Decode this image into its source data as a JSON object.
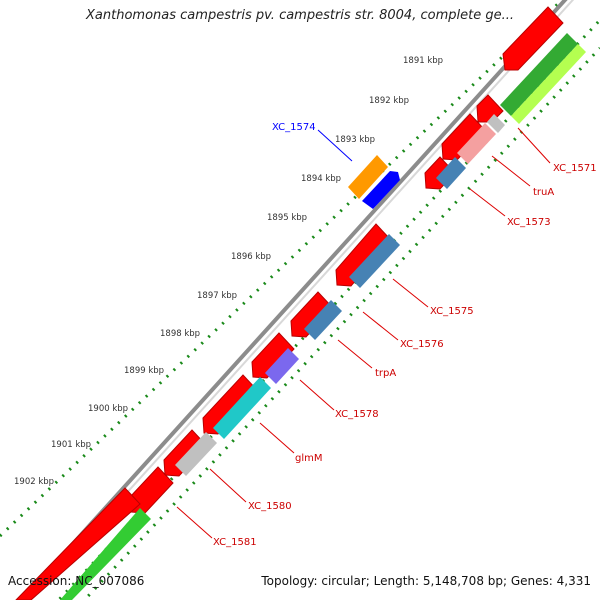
{
  "header": {
    "title": "Xanthomonas campestris pv. campestris str. 8004, complete ge..."
  },
  "footer": {
    "accession": "Accession: NC_007086",
    "summary": "Topology: circular; Length: 5,148,708 bp; Genes: 4,331"
  },
  "ruler": {
    "ticks": [
      "1891 kbp",
      "1892 kbp",
      "1893 kbp",
      "1894 kbp",
      "1895 kbp",
      "1896 kbp",
      "1897 kbp",
      "1898 kbp",
      "1899 kbp",
      "1900 kbp",
      "1901 kbp",
      "1902 kbp"
    ]
  },
  "gene_labels": [
    {
      "name": "XC_1574",
      "color": "#0000ff",
      "side": "outer"
    },
    {
      "name": "XC_1571",
      "color": "#cc0000",
      "side": "inner"
    },
    {
      "name": "truA",
      "color": "#cc0000",
      "side": "inner"
    },
    {
      "name": "XC_1573",
      "color": "#cc0000",
      "side": "inner"
    },
    {
      "name": "XC_1575",
      "color": "#cc0000",
      "side": "inner"
    },
    {
      "name": "XC_1576",
      "color": "#cc0000",
      "side": "inner"
    },
    {
      "name": "trpA",
      "color": "#cc0000",
      "side": "inner"
    },
    {
      "name": "XC_1578",
      "color": "#cc0000",
      "side": "inner"
    },
    {
      "name": "glmM",
      "color": "#cc0000",
      "side": "inner"
    },
    {
      "name": "XC_1580",
      "color": "#cc0000",
      "side": "inner"
    },
    {
      "name": "XC_1581",
      "color": "#cc0000",
      "side": "inner"
    }
  ],
  "colors": {
    "backbone": "#8c8c8c",
    "ruler_dots": "#1a8a1a",
    "orf": "#ff0000",
    "cds_gray": "#c0c0c0",
    "cds_pink": "#f4a0a0",
    "cds_steelblue": "#4682b4",
    "cds_purple": "#6a5acd",
    "cds_cyan": "#20c8c8",
    "cds_green": "#33cc33",
    "cds_lightgreen": "#b4ff50",
    "cds_orange": "#ff9900",
    "cds_blue": "#0000ff"
  }
}
